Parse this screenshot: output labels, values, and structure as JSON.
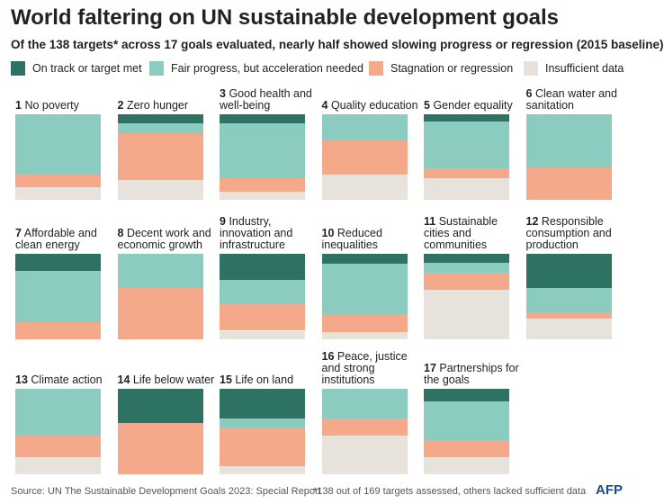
{
  "chart_data": {
    "type": "stacked-square",
    "title": "World faltering on UN sustainable development goals",
    "subtitle": "Of the 138 targets* across 17 goals evaluated, nearly half showed slowing progress or regression (2015 baseline)",
    "goal_numbers": [
      1,
      2,
      3,
      4,
      5,
      6,
      7,
      8,
      9,
      10,
      11,
      12,
      13,
      14,
      15,
      16,
      17
    ],
    "categories": [
      "No poverty",
      "Zero hunger",
      "Good health and well-being",
      "Quality education",
      "Gender equality",
      "Clean water and sanitation",
      "Affordable and clean energy",
      "Decent work and economic growth",
      "Industry, innovation and infrastructure",
      "Reduced inequalities",
      "Sustainable cities and communities",
      "Responsible consumption and production",
      "Climate action",
      "Life below water",
      "Life on land",
      "Peace, justice and strong institutions",
      "Partnerships for the goals"
    ],
    "series": [
      {
        "name": "On track or target met",
        "color": "#2e7264",
        "values": [
          0,
          10,
          10,
          0,
          8,
          0,
          20,
          0,
          30,
          12,
          10,
          40,
          0,
          40,
          35,
          0,
          15
        ]
      },
      {
        "name": "Fair progress, but acceleration needed",
        "color": "#8ccbbf",
        "values": [
          70,
          12,
          65,
          30,
          55,
          62,
          60,
          40,
          28,
          60,
          12,
          28,
          55,
          0,
          10,
          35,
          45
        ]
      },
      {
        "name": "Stagnation or regression",
        "color": "#f4a98a",
        "values": [
          15,
          55,
          15,
          40,
          12,
          38,
          20,
          60,
          32,
          20,
          20,
          8,
          25,
          60,
          45,
          20,
          20
        ]
      },
      {
        "name": "Insufficient data",
        "color": "#e8e2dc",
        "values": [
          15,
          23,
          10,
          30,
          25,
          0,
          0,
          0,
          10,
          8,
          58,
          24,
          20,
          0,
          10,
          45,
          20
        ]
      }
    ],
    "source": "Source: UN The Sustainable Development Goals 2023: Special Report",
    "note": "*138 out of 169 targets assessed, others lacked sufficient data",
    "logo": "AFP"
  }
}
